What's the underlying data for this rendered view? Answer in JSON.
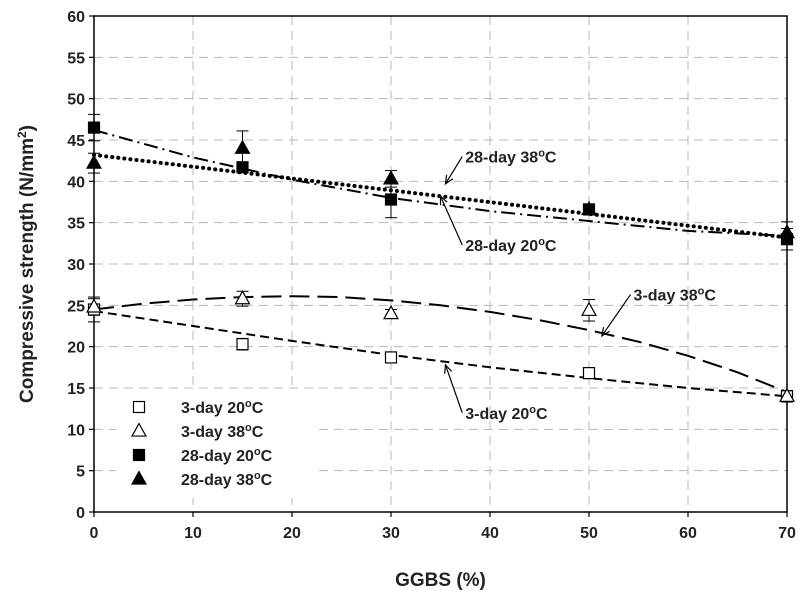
{
  "chart_data": {
    "type": "scatter",
    "title": "",
    "xlabel": "GGBS (%)",
    "ylabel_main": "Compressive strength (N/mm",
    "ylabel_sup": "2",
    "ylabel_close": ")",
    "xlim": [
      0,
      70
    ],
    "ylim": [
      0,
      60
    ],
    "x_ticks": [
      0,
      10,
      20,
      30,
      40,
      50,
      60,
      70
    ],
    "y_ticks": [
      0,
      5,
      10,
      15,
      20,
      25,
      30,
      35,
      40,
      45,
      50,
      55,
      60
    ],
    "grid": true,
    "legend_position": "bottom-left",
    "series": [
      {
        "key": "d3_20",
        "name": "3-day 20",
        "sup": "o",
        "unit": "C",
        "marker": "open-square",
        "x": [
          0,
          15,
          30,
          50,
          70
        ],
        "y": [
          24.5,
          20.3,
          18.7,
          16.8,
          14.0
        ],
        "err": [
          1.5,
          0.7,
          0.6,
          0.6,
          0.7
        ]
      },
      {
        "key": "d3_38",
        "name": "3-day 38",
        "sup": "o",
        "unit": "C",
        "marker": "open-triangle",
        "x": [
          0,
          15,
          30,
          50,
          70
        ],
        "y": [
          24.8,
          25.8,
          24.0,
          24.4,
          14.0
        ],
        "err": [
          1.0,
          0.9,
          0.5,
          1.3,
          0.6
        ]
      },
      {
        "key": "d28_20",
        "name": "28-day 20",
        "sup": "o",
        "unit": "C",
        "marker": "filled-square",
        "x": [
          0,
          15,
          30,
          50,
          70
        ],
        "y": [
          46.5,
          41.7,
          37.8,
          36.6,
          33.0
        ],
        "err": [
          1.6,
          0.5,
          2.2,
          0.5,
          1.3
        ]
      },
      {
        "key": "d28_38",
        "name": "28-day 38",
        "sup": "o",
        "unit": "C",
        "marker": "filled-triangle",
        "x": [
          0,
          15,
          30,
          50,
          70
        ],
        "y": [
          42.2,
          44.0,
          40.3,
          36.6,
          33.8
        ],
        "err": [
          1.2,
          2.1,
          1.0,
          0.5,
          1.3
        ]
      }
    ],
    "trendlines": [
      {
        "series": "d3_20",
        "style": "short-dash",
        "x": [
          0,
          10,
          20,
          30,
          40,
          50,
          60,
          70
        ],
        "y": [
          24.3,
          22.5,
          20.7,
          19.0,
          17.5,
          16.2,
          15.0,
          14.0
        ]
      },
      {
        "series": "d3_38",
        "style": "long-dash",
        "x": [
          0,
          5,
          10,
          15,
          20,
          25,
          30,
          35,
          40,
          45,
          50,
          55,
          60,
          65,
          70
        ],
        "y": [
          24.5,
          25.2,
          25.7,
          26.0,
          26.1,
          26.0,
          25.6,
          25.0,
          24.2,
          23.2,
          22.0,
          20.6,
          18.9,
          16.9,
          14.5
        ]
      },
      {
        "series": "d28_20",
        "style": "dash-dot",
        "x": [
          0,
          10,
          20,
          30,
          40,
          50,
          60,
          70
        ],
        "y": [
          46.2,
          42.9,
          40.2,
          38.0,
          36.4,
          35.2,
          34.0,
          33.4
        ]
      },
      {
        "series": "d28_38",
        "style": "dotted",
        "x": [
          0,
          70
        ],
        "y": [
          43.2,
          33.2
        ]
      }
    ],
    "annotations": [
      {
        "series": "d28_38",
        "text": "28-day 38",
        "sup": "o",
        "unit": "C",
        "label_at": [
          37.5,
          43.0
        ],
        "arrow_to": [
          35.5,
          39.7
        ]
      },
      {
        "series": "d28_20",
        "text": "28-day 20",
        "sup": "o",
        "unit": "C",
        "label_at": [
          37.5,
          32.3
        ],
        "arrow_to": [
          35.0,
          38.2
        ]
      },
      {
        "series": "d3_38",
        "text": "3-day 38",
        "sup": "o",
        "unit": "C",
        "label_at": [
          54.5,
          26.3
        ],
        "arrow_to": [
          51.3,
          21.3
        ]
      },
      {
        "series": "d3_20",
        "text": "3-day 20",
        "sup": "o",
        "unit": "C",
        "label_at": [
          37.5,
          12.0
        ],
        "arrow_to": [
          35.5,
          17.8
        ]
      }
    ]
  }
}
